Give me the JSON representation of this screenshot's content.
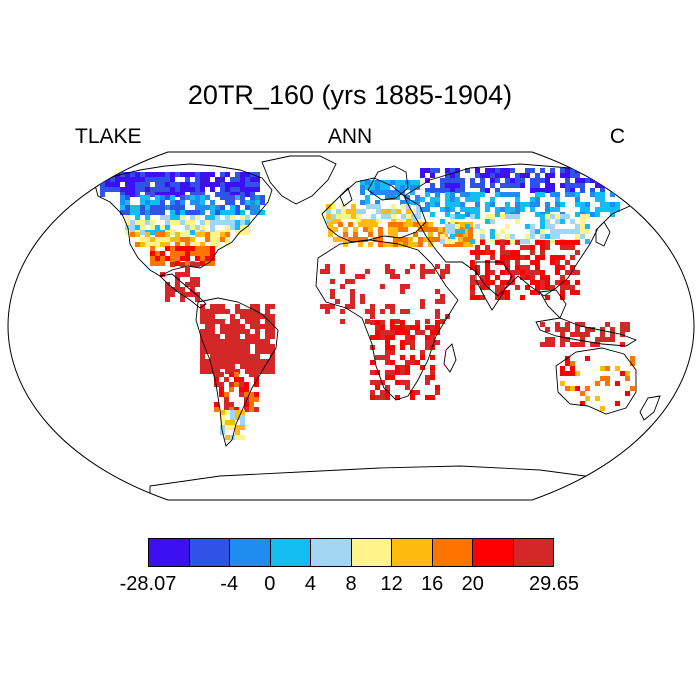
{
  "title": "20TR_160 (yrs 1885-1904)",
  "left_label": "TLAKE",
  "center_label": "ANN",
  "right_label": "C",
  "colorbar": {
    "colors": [
      "#3d10f2",
      "#2f53e6",
      "#1f8cf2",
      "#14bcf4",
      "#a3d6f2",
      "#fff48a",
      "#ffbb10",
      "#ff7400",
      "#ff0000",
      "#d42828"
    ],
    "tick_labels": [
      "-28.07",
      "",
      "-4",
      "0",
      "4",
      "8",
      "12",
      "16",
      "20",
      "",
      "29.65"
    ]
  }
}
